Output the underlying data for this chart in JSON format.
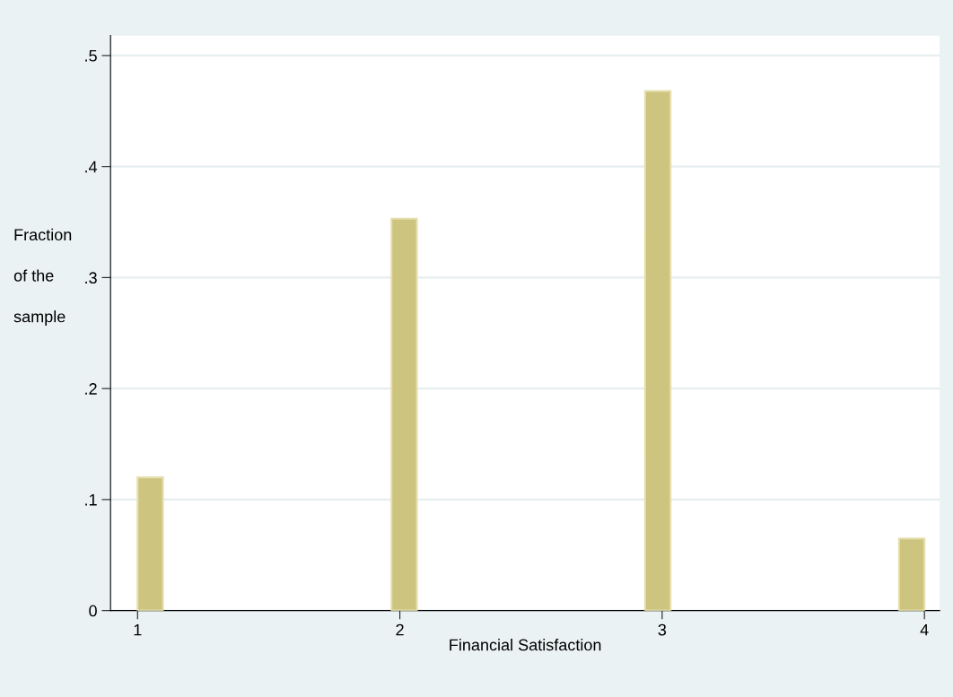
{
  "chart_data": {
    "type": "histogram",
    "xlabel": "Financial Satisfaction",
    "ylabel": "Fraction\nof the\nsample",
    "color": "#cdc47f",
    "bins": [
      1,
      1.097,
      1.194,
      1.29,
      1.387,
      1.484,
      1.581,
      1.677,
      1.774,
      1.871,
      1.968,
      2.065,
      2.161,
      2.258,
      2.355,
      2.452,
      2.548,
      2.645,
      2.742,
      2.839,
      2.935,
      3.032,
      3.129,
      3.226,
      3.323,
      3.419,
      3.516,
      3.613,
      3.71,
      3.806,
      3.903,
      4
    ],
    "values": [
      0.12,
      0,
      0,
      0,
      0,
      0,
      0,
      0,
      0,
      0,
      0.353,
      0,
      0,
      0,
      0,
      0,
      0,
      0,
      0,
      0,
      0.468,
      0,
      0,
      0,
      0,
      0,
      0,
      0,
      0,
      0,
      0.065
    ],
    "xlim": [
      0.897,
      4.058
    ],
    "ylim": [
      0,
      0.518
    ],
    "xticks": [
      1,
      2,
      3,
      4
    ],
    "yticks": [
      0,
      {
        "value": 0.1,
        "label": ".1"
      },
      {
        "value": 0.2,
        "label": ".2"
      },
      {
        "value": 0.3,
        "label": ".3"
      },
      {
        "value": 0.4,
        "label": ".4"
      },
      {
        "value": 0.5,
        "label": ".5"
      }
    ],
    "grid": "y"
  }
}
